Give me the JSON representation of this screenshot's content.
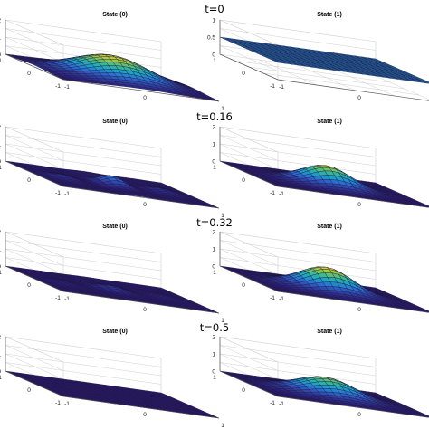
{
  "figure": {
    "row_labels": [
      "t=0",
      "t=0.16",
      "t=0.32",
      "t=0.5"
    ],
    "column_titles": [
      "State (0)",
      "State (1)"
    ]
  },
  "colors": {
    "colormap": [
      "#2b1a78",
      "#2f3d9e",
      "#2c6dd4",
      "#1aa3c4",
      "#3dbb8f",
      "#a3c93b",
      "#f2dc28"
    ],
    "axis_line": "#555555",
    "grid": "#cfcfcf"
  },
  "chart_data": [
    {
      "type": "surface",
      "title": "State (0)",
      "time_label": "t=0",
      "zlim": [
        0,
        2
      ],
      "z_ticks": [
        "0",
        "1",
        "2"
      ],
      "xlim": [
        -1,
        1
      ],
      "ylim": [
        -1,
        1
      ],
      "x_ticks": [
        "-1",
        "0",
        "1"
      ],
      "y_ticks": [
        "-1",
        "0",
        "1"
      ],
      "grid": true,
      "surface": {
        "form": "gaussian",
        "peak": 1.3,
        "center": [
          0,
          0
        ],
        "width": 0.45
      }
    },
    {
      "type": "surface",
      "title": "State (1)",
      "time_label": "t=0",
      "zlim": [
        0,
        1
      ],
      "z_ticks": [
        "0",
        "0.5",
        "1"
      ],
      "xlim": [
        -1,
        1
      ],
      "ylim": [
        -1,
        1
      ],
      "x_ticks": [
        "-1",
        "0",
        "1"
      ],
      "y_ticks": [
        "-1",
        "0",
        "1"
      ],
      "grid": true,
      "surface": {
        "form": "flat",
        "level": 0.5
      }
    },
    {
      "type": "surface",
      "title": "State (0)",
      "time_label": "t=0.16",
      "zlim": [
        0,
        2
      ],
      "z_ticks": [
        "0",
        "1",
        "2"
      ],
      "xlim": [
        -1,
        1
      ],
      "ylim": [
        -1,
        1
      ],
      "x_ticks": [
        "-1",
        "0",
        "1"
      ],
      "y_ticks": [
        "-1",
        "0",
        "1"
      ],
      "grid": true,
      "surface": {
        "form": "ripples",
        "peak": 0.5,
        "center": [
          0,
          0
        ],
        "width": 0.45
      }
    },
    {
      "type": "surface",
      "title": "State (1)",
      "time_label": "t=0.16",
      "zlim": [
        0,
        2
      ],
      "z_ticks": [
        "0",
        "1",
        "2"
      ],
      "xlim": [
        -1,
        1
      ],
      "ylim": [
        -1,
        1
      ],
      "x_ticks": [
        "-1",
        "0",
        "1"
      ],
      "y_ticks": [
        "-1",
        "0",
        "1"
      ],
      "grid": true,
      "surface": {
        "form": "gaussian",
        "peak": 1.1,
        "center": [
          0,
          0
        ],
        "width": 0.3
      }
    },
    {
      "type": "surface",
      "title": "State (0)",
      "time_label": "t=0.32",
      "zlim": [
        0,
        2
      ],
      "z_ticks": [
        "0",
        "1",
        "2"
      ],
      "xlim": [
        -1,
        1
      ],
      "ylim": [
        -1,
        1
      ],
      "x_ticks": [
        "-1",
        "0",
        "1"
      ],
      "y_ticks": [
        "-1",
        "0",
        "1"
      ],
      "grid": true,
      "surface": {
        "form": "ripples",
        "peak": 0.22,
        "center": [
          0,
          0
        ],
        "width": 0.45
      }
    },
    {
      "type": "surface",
      "title": "State (1)",
      "time_label": "t=0.32",
      "zlim": [
        0,
        2
      ],
      "z_ticks": [
        "0",
        "1",
        "2"
      ],
      "xlim": [
        -1,
        1
      ],
      "ylim": [
        -1,
        1
      ],
      "x_ticks": [
        "-1",
        "0",
        "1"
      ],
      "y_ticks": [
        "-1",
        "0",
        "1"
      ],
      "grid": true,
      "surface": {
        "form": "gaussian",
        "peak": 1.3,
        "center": [
          0,
          0
        ],
        "width": 0.32
      }
    },
    {
      "type": "surface",
      "title": "State (0)",
      "time_label": "t=0.5",
      "zlim": [
        0,
        2
      ],
      "z_ticks": [
        "0",
        "1",
        "2"
      ],
      "xlim": [
        -1,
        1
      ],
      "ylim": [
        -1,
        1
      ],
      "x_ticks": [
        "-1",
        "0",
        "1"
      ],
      "y_ticks": [
        "-1",
        "0",
        "1"
      ],
      "grid": true,
      "surface": {
        "form": "flat",
        "level": 0.0
      }
    },
    {
      "type": "surface",
      "title": "State (1)",
      "time_label": "t=0.5",
      "zlim": [
        0,
        2
      ],
      "z_ticks": [
        "0",
        "1",
        "2"
      ],
      "xlim": [
        -1,
        1
      ],
      "ylim": [
        -1,
        1
      ],
      "x_ticks": [
        "-1",
        "0",
        "1"
      ],
      "y_ticks": [
        "-1",
        "0",
        "1"
      ],
      "grid": true,
      "surface": {
        "form": "gaussian",
        "peak": 1.0,
        "center": [
          0,
          0
        ],
        "width": 0.35
      }
    }
  ]
}
